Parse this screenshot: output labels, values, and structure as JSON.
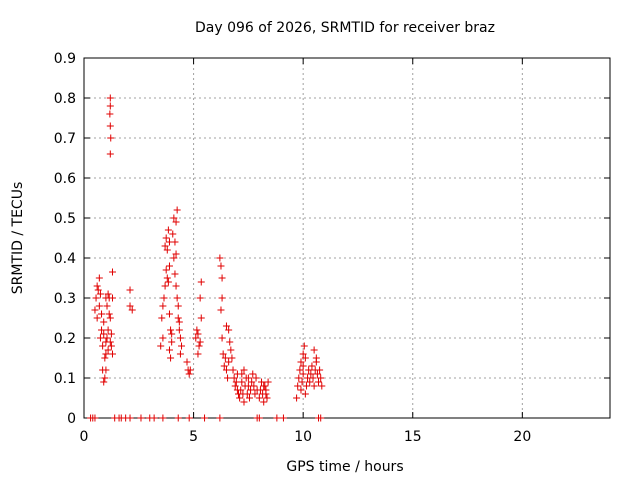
{
  "chart_data": {
    "type": "scatter",
    "title": "Day 096 of 2026, SRMTID for receiver braz",
    "xlabel": "GPS time / hours",
    "ylabel": "SRMTID / TECUs",
    "xlim": [
      0,
      24
    ],
    "ylim": [
      0,
      0.9
    ],
    "xticks": [
      0,
      5,
      10,
      15,
      20
    ],
    "xtick_labels": [
      "0",
      "5",
      "10",
      "15",
      "20"
    ],
    "yticks": [
      0,
      0.1,
      0.2,
      0.3,
      0.4,
      0.5,
      0.6,
      0.7,
      0.8,
      0.9
    ],
    "ytick_labels": [
      "0",
      "0.1",
      "0.2",
      "0.3",
      "0.4",
      "0.5",
      "0.6",
      "0.7",
      "0.8",
      "0.9"
    ],
    "grid": true,
    "marker": "plus",
    "color": "#e00000",
    "series": [
      {
        "name": "SRMTID",
        "points": [
          [
            0.3,
            0
          ],
          [
            0.4,
            0
          ],
          [
            0.5,
            0
          ],
          [
            0.5,
            0.27
          ],
          [
            0.55,
            0.3
          ],
          [
            0.6,
            0.33
          ],
          [
            0.65,
            0.32
          ],
          [
            0.7,
            0.35
          ],
          [
            0.75,
            0.31
          ],
          [
            0.6,
            0.25
          ],
          [
            0.7,
            0.28
          ],
          [
            0.8,
            0.26
          ],
          [
            0.75,
            0.2
          ],
          [
            0.8,
            0.22
          ],
          [
            0.85,
            0.18
          ],
          [
            0.9,
            0.21
          ],
          [
            0.85,
            0.12
          ],
          [
            0.9,
            0.09
          ],
          [
            0.95,
            0.1
          ],
          [
            1.0,
            0.12
          ],
          [
            0.95,
            0.15
          ],
          [
            0.9,
            0.24
          ],
          [
            1.0,
            0.19
          ],
          [
            1.05,
            0.2
          ],
          [
            1.1,
            0.22
          ],
          [
            1.0,
            0.16
          ],
          [
            1.1,
            0.17
          ],
          [
            1.0,
            0.3
          ],
          [
            1.05,
            0.28
          ],
          [
            1.1,
            0.31
          ],
          [
            1.15,
            0.3
          ],
          [
            1.2,
            0.25
          ],
          [
            1.15,
            0.26
          ],
          [
            1.2,
            0.19
          ],
          [
            1.25,
            0.18
          ],
          [
            1.3,
            0.16
          ],
          [
            1.25,
            0.21
          ],
          [
            1.3,
            0.3
          ],
          [
            1.3,
            0.365
          ],
          [
            1.2,
            0.66
          ],
          [
            1.22,
            0.7
          ],
          [
            1.2,
            0.73
          ],
          [
            1.18,
            0.76
          ],
          [
            1.2,
            0.78
          ],
          [
            1.2,
            0.8
          ],
          [
            1.4,
            0
          ],
          [
            1.6,
            0
          ],
          [
            1.7,
            0
          ],
          [
            1.9,
            0
          ],
          [
            2.1,
            0
          ],
          [
            2.1,
            0.32
          ],
          [
            2.1,
            0.28
          ],
          [
            2.2,
            0.27
          ],
          [
            2.6,
            0
          ],
          [
            3.0,
            0
          ],
          [
            3.2,
            0
          ],
          [
            3.6,
            0
          ],
          [
            3.5,
            0.18
          ],
          [
            3.6,
            0.2
          ],
          [
            3.55,
            0.25
          ],
          [
            3.6,
            0.28
          ],
          [
            3.65,
            0.3
          ],
          [
            3.7,
            0.33
          ],
          [
            3.7,
            0.43
          ],
          [
            3.75,
            0.45
          ],
          [
            3.8,
            0.42
          ],
          [
            3.85,
            0.47
          ],
          [
            3.9,
            0.44
          ],
          [
            3.75,
            0.37
          ],
          [
            3.8,
            0.35
          ],
          [
            3.85,
            0.34
          ],
          [
            3.9,
            0.38
          ],
          [
            3.9,
            0.26
          ],
          [
            3.95,
            0.22
          ],
          [
            3.9,
            0.17
          ],
          [
            3.95,
            0.15
          ],
          [
            4.0,
            0.19
          ],
          [
            4.0,
            0.21
          ],
          [
            4.05,
            0.46
          ],
          [
            4.1,
            0.5
          ],
          [
            4.15,
            0.44
          ],
          [
            4.2,
            0.49
          ],
          [
            4.25,
            0.52
          ],
          [
            4.2,
            0.41
          ],
          [
            4.1,
            0.4
          ],
          [
            4.15,
            0.36
          ],
          [
            4.2,
            0.33
          ],
          [
            4.25,
            0.3
          ],
          [
            4.3,
            0.28
          ],
          [
            4.3,
            0.25
          ],
          [
            4.35,
            0.22
          ],
          [
            4.4,
            0.2
          ],
          [
            4.35,
            0.24
          ],
          [
            4.4,
            0.16
          ],
          [
            4.45,
            0.18
          ],
          [
            4.3,
            0
          ],
          [
            4.7,
            0.14
          ],
          [
            4.75,
            0.12
          ],
          [
            4.8,
            0.11
          ],
          [
            4.85,
            0.12
          ],
          [
            4.8,
            0
          ],
          [
            5.1,
            0.2
          ],
          [
            5.15,
            0.22
          ],
          [
            5.2,
            0.21
          ],
          [
            5.25,
            0.18
          ],
          [
            5.2,
            0.16
          ],
          [
            5.3,
            0.19
          ],
          [
            5.35,
            0.25
          ],
          [
            5.3,
            0.3
          ],
          [
            5.35,
            0.34
          ],
          [
            5.5,
            0
          ],
          [
            6.2,
            0.4
          ],
          [
            6.25,
            0.38
          ],
          [
            6.3,
            0.35
          ],
          [
            6.3,
            0.3
          ],
          [
            6.25,
            0.27
          ],
          [
            6.2,
            0
          ],
          [
            6.3,
            0.2
          ],
          [
            6.35,
            0.16
          ],
          [
            6.4,
            0.13
          ],
          [
            6.45,
            0.15
          ],
          [
            6.5,
            0.12
          ],
          [
            6.55,
            0.1
          ],
          [
            6.6,
            0.14
          ],
          [
            6.5,
            0.23
          ],
          [
            6.6,
            0.22
          ],
          [
            6.65,
            0.19
          ],
          [
            6.7,
            0.17
          ],
          [
            6.75,
            0.15
          ],
          [
            6.8,
            0.12
          ],
          [
            6.85,
            0.1
          ],
          [
            6.9,
            0.08
          ],
          [
            6.95,
            0.09
          ],
          [
            7.0,
            0.11
          ],
          [
            7.0,
            0.07
          ],
          [
            7.05,
            0.06
          ],
          [
            7.1,
            0.05
          ],
          [
            7.15,
            0.07
          ],
          [
            7.2,
            0.09
          ],
          [
            7.25,
            0.06
          ],
          [
            7.3,
            0.04
          ],
          [
            7.35,
            0.08
          ],
          [
            7.4,
            0.1
          ],
          [
            7.45,
            0.06
          ],
          [
            7.5,
            0.08
          ],
          [
            7.55,
            0.05
          ],
          [
            7.6,
            0.07
          ],
          [
            7.65,
            0.09
          ],
          [
            7.7,
            0.11
          ],
          [
            7.75,
            0.08
          ],
          [
            7.8,
            0.06
          ],
          [
            7.85,
            0.1
          ],
          [
            7.9,
            0.07
          ],
          [
            7.2,
            0.11
          ],
          [
            7.3,
            0.12
          ],
          [
            7.5,
            0.1
          ],
          [
            7.9,
            0
          ],
          [
            8.0,
            0
          ],
          [
            8.0,
            0.05
          ],
          [
            8.05,
            0.07
          ],
          [
            8.1,
            0.09
          ],
          [
            8.15,
            0.06
          ],
          [
            8.2,
            0.04
          ],
          [
            8.25,
            0.08
          ],
          [
            8.3,
            0.07
          ],
          [
            8.35,
            0.05
          ],
          [
            8.4,
            0.09
          ],
          [
            8.2,
            0.08
          ],
          [
            8.3,
            0.06
          ],
          [
            8.8,
            0
          ],
          [
            9.1,
            0
          ],
          [
            9.7,
            0.05
          ],
          [
            9.75,
            0.08
          ],
          [
            9.8,
            0.1
          ],
          [
            9.85,
            0.12
          ],
          [
            9.9,
            0.07
          ],
          [
            9.95,
            0.09
          ],
          [
            10.0,
            0.11
          ],
          [
            9.9,
            0.14
          ],
          [
            10.0,
            0.16
          ],
          [
            10.05,
            0.18
          ],
          [
            10.1,
            0.15
          ],
          [
            10.0,
            0.13
          ],
          [
            10.1,
            0.06
          ],
          [
            10.15,
            0.08
          ],
          [
            10.2,
            0.1
          ],
          [
            10.25,
            0.12
          ],
          [
            10.3,
            0.09
          ],
          [
            10.35,
            0.11
          ],
          [
            10.4,
            0.13
          ],
          [
            10.45,
            0.1
          ],
          [
            10.5,
            0.08
          ],
          [
            10.55,
            0.12
          ],
          [
            10.6,
            0.14
          ],
          [
            10.65,
            0.11
          ],
          [
            10.7,
            0.09
          ],
          [
            10.75,
            0.12
          ],
          [
            10.5,
            0.17
          ],
          [
            10.6,
            0.15
          ],
          [
            10.8,
            0.1
          ],
          [
            10.85,
            0.08
          ],
          [
            10.7,
            0
          ],
          [
            10.8,
            0
          ]
        ]
      }
    ]
  }
}
